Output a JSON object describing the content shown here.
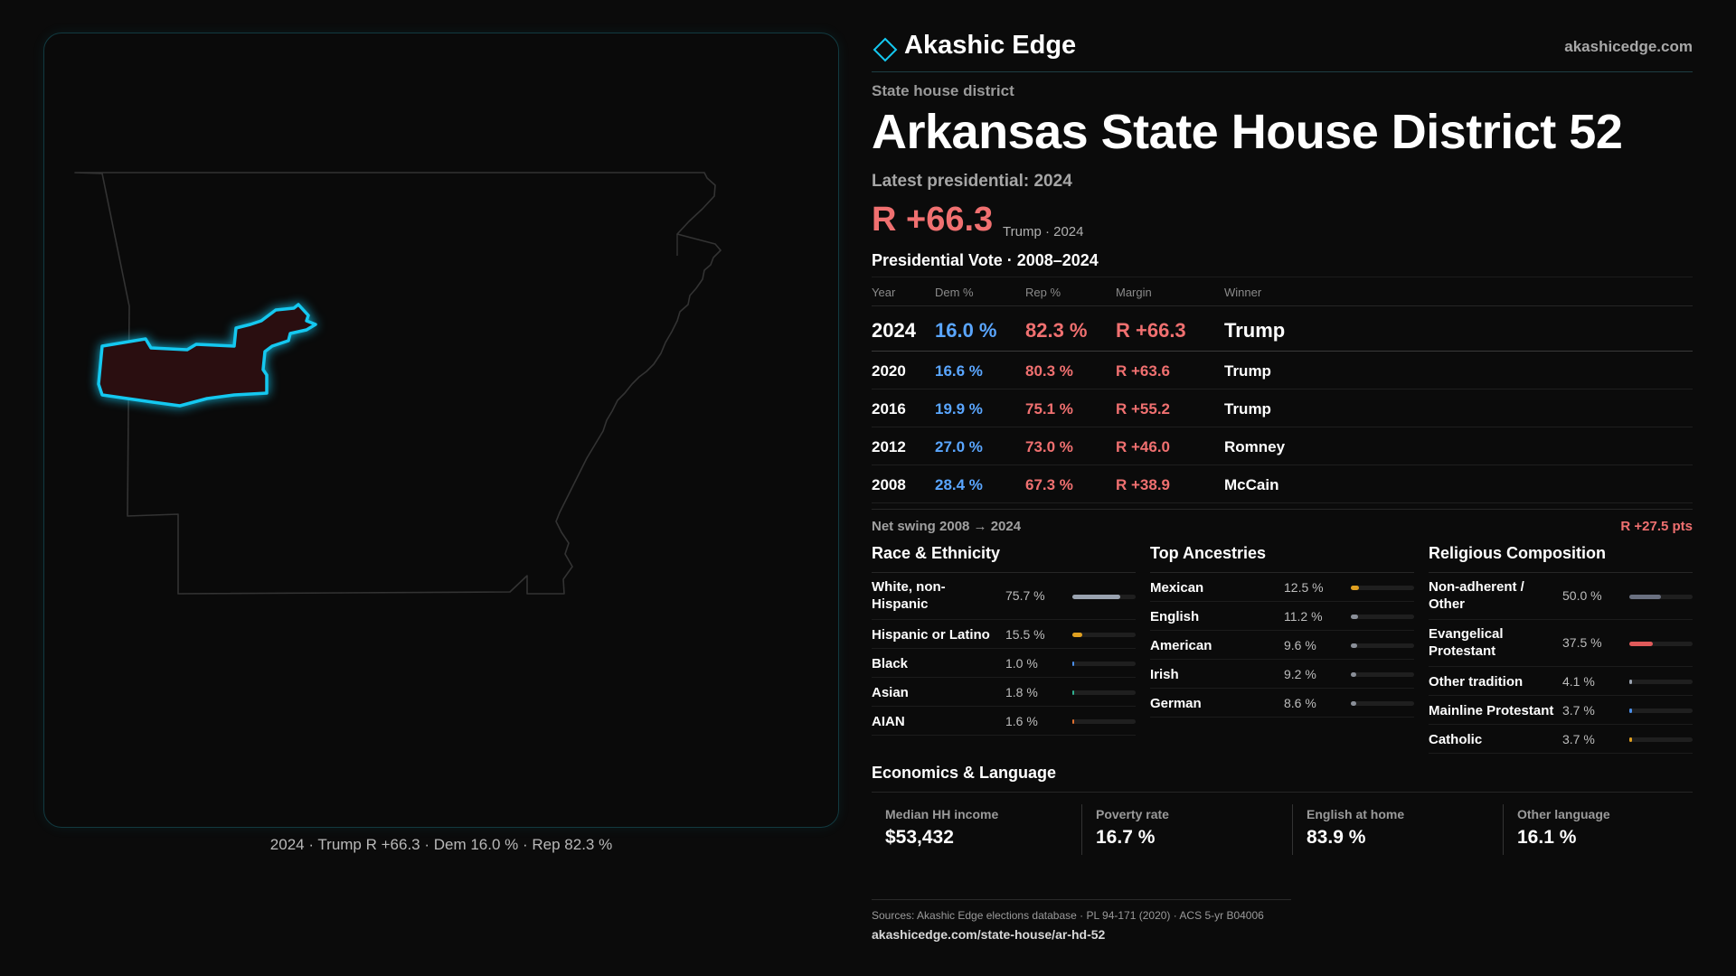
{
  "brand": {
    "name": "Akashic Edge",
    "url": "akashicedge.com"
  },
  "kicker": "State house district",
  "title": "Arkansas State House District 52",
  "latest": {
    "label": "Latest presidential: 2024",
    "margin": "R +66.3",
    "sub": "Trump · 2024"
  },
  "vote": {
    "title": "Presidential Vote · 2008–2024",
    "headers": {
      "year": "Year",
      "dem": "Dem %",
      "rep": "Rep %",
      "margin": "Margin",
      "winner": "Winner"
    },
    "rows": [
      {
        "year": "2024",
        "dem": "16.0 %",
        "rep": "82.3 %",
        "margin": "R +66.3",
        "winner": "Trump"
      },
      {
        "year": "2020",
        "dem": "16.6 %",
        "rep": "80.3 %",
        "margin": "R +63.6",
        "winner": "Trump"
      },
      {
        "year": "2016",
        "dem": "19.9 %",
        "rep": "75.1 %",
        "margin": "R +55.2",
        "winner": "Trump"
      },
      {
        "year": "2012",
        "dem": "27.0 %",
        "rep": "73.0 %",
        "margin": "R +46.0",
        "winner": "Romney"
      },
      {
        "year": "2008",
        "dem": "28.4 %",
        "rep": "67.3 %",
        "margin": "R +38.9",
        "winner": "McCain"
      }
    ]
  },
  "swing": {
    "label": "Net swing 2008 → 2024",
    "value": "R +27.5 pts"
  },
  "race": {
    "title": "Race & Ethnicity",
    "items": [
      {
        "label": "White, non-Hispanic",
        "pct": "75.7 %",
        "value": 75.7,
        "color": "#9aa3b0"
      },
      {
        "label": "Hispanic or Latino",
        "pct": "15.5 %",
        "value": 15.5,
        "color": "#e0a020"
      },
      {
        "label": "Black",
        "pct": "1.0 %",
        "value": 1.0,
        "color": "#4a8ee8"
      },
      {
        "label": "Asian",
        "pct": "1.8 %",
        "value": 1.8,
        "color": "#30b090"
      },
      {
        "label": "AIAN",
        "pct": "1.6 %",
        "value": 1.6,
        "color": "#e07030"
      }
    ]
  },
  "ancestry": {
    "title": "Top Ancestries",
    "items": [
      {
        "label": "Mexican",
        "pct": "12.5 %",
        "value": 12.5,
        "color": "#e0a020"
      },
      {
        "label": "English",
        "pct": "11.2 %",
        "value": 11.2,
        "color": "#8a8f98"
      },
      {
        "label": "American",
        "pct": "9.6 %",
        "value": 9.6,
        "color": "#8a8f98"
      },
      {
        "label": "Irish",
        "pct": "9.2 %",
        "value": 9.2,
        "color": "#8a8f98"
      },
      {
        "label": "German",
        "pct": "8.6 %",
        "value": 8.6,
        "color": "#8a8f98"
      }
    ]
  },
  "religion": {
    "title": "Religious Composition",
    "items": [
      {
        "label": "Non-adherent / Other",
        "pct": "50.0 %",
        "value": 50.0,
        "color": "#6a7080"
      },
      {
        "label": "Evangelical Protestant",
        "pct": "37.5 %",
        "value": 37.5,
        "color": "#e05a5a"
      },
      {
        "label": "Other tradition",
        "pct": "4.1 %",
        "value": 4.1,
        "color": "#9aa3b0"
      },
      {
        "label": "Mainline Protestant",
        "pct": "3.7 %",
        "value": 3.7,
        "color": "#4a8ee8"
      },
      {
        "label": "Catholic",
        "pct": "3.7 %",
        "value": 3.7,
        "color": "#e0a020"
      }
    ]
  },
  "econ": {
    "title": "Economics & Language",
    "cards": [
      {
        "label": "Median HH income",
        "value": "$53,432"
      },
      {
        "label": "Poverty rate",
        "value": "16.7 %"
      },
      {
        "label": "English at home",
        "value": "83.9 %"
      },
      {
        "label": "Other language",
        "value": "16.1 %"
      }
    ]
  },
  "sources": "Sources: Akashic Edge elections database · PL 94-171 (2020) · ACS 5-yr B04006",
  "source_url": "akashicedge.com/state-house/ar-hd-52",
  "map": {
    "caption": "2024 · Trump R +66.3 · Dem 16.0 % · Rep 82.3 %"
  },
  "colors": {
    "accent": "#14c8f0",
    "dem": "#5aa6ff",
    "rep": "#f07070",
    "district_fill": "#2a0e10"
  }
}
